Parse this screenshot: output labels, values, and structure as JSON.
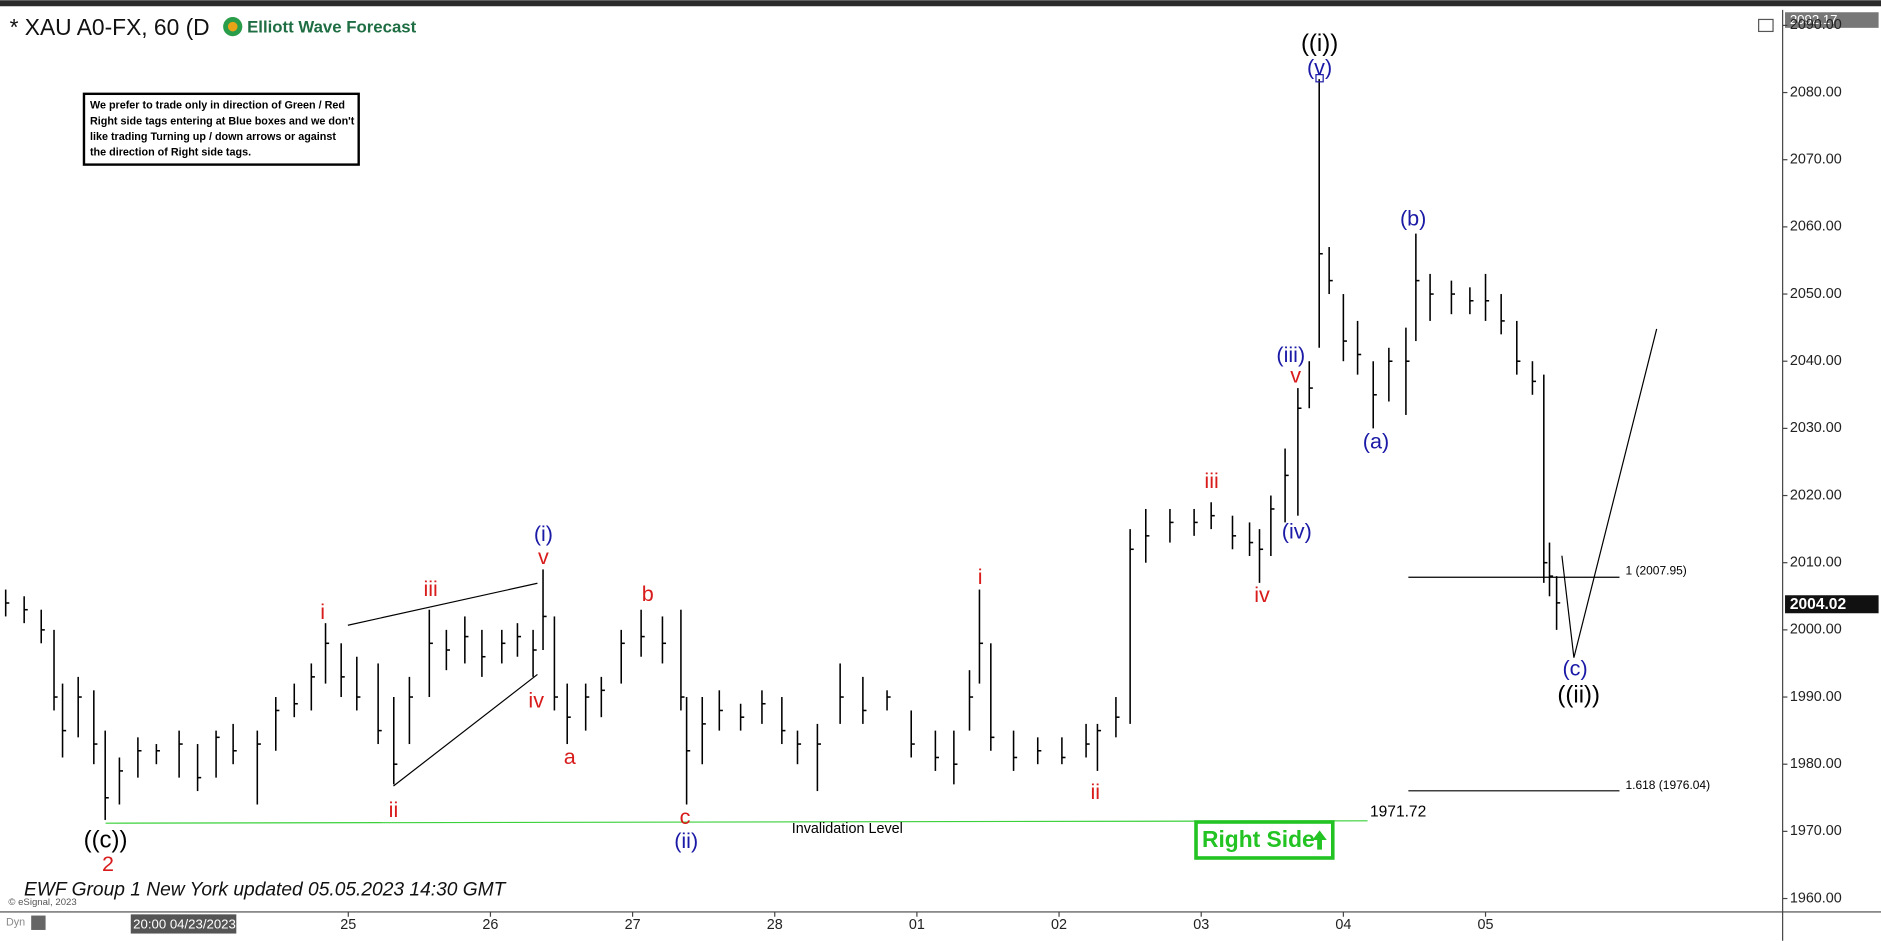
{
  "chart_data": {
    "type": "ohlc",
    "title": "* XAU A0-FX, 60 (D",
    "logo": "Elliott Wave Forecast",
    "note": [
      "We prefer to trade only in direction of Green / Red",
      "Right side tags entering at Blue boxes and we don't",
      "like trading Turning up / down arrows or against",
      "the direction of Right side tags."
    ],
    "footer": "EWF Group 1 New York updated 05.05.2023 14:30 GMT",
    "copyright": "© eSignal, 2023",
    "corner": "Dyn",
    "cursor_label": "20:00 04/23/2023",
    "last_price": "2004.02",
    "top_price": "2092.17",
    "invalidation": {
      "label": "Invalidation Level",
      "value": "1971.72"
    },
    "fib": [
      "1 (2007.95)",
      "1.618 (1976.04)"
    ],
    "right_side": "Right Side",
    "bar_color": "#000000",
    "xlim": [
      -1.45,
      11.09
    ],
    "ylim": [
      1958.0,
      2091.6
    ],
    "xticks": [
      {
        "value": 1,
        "label": "25"
      },
      {
        "value": 2,
        "label": "26"
      },
      {
        "value": 3,
        "label": "27"
      },
      {
        "value": 4,
        "label": "28"
      },
      {
        "value": 5,
        "label": "01"
      },
      {
        "value": 6,
        "label": "02"
      },
      {
        "value": 7,
        "label": "03"
      },
      {
        "value": 8,
        "label": "04"
      },
      {
        "value": 9,
        "label": "05"
      }
    ],
    "yticks": [
      {
        "value": 1960,
        "label": "1960.00"
      },
      {
        "value": 1970,
        "label": "1970.00"
      },
      {
        "value": 1980,
        "label": "1980.00"
      },
      {
        "value": 1990,
        "label": "1990.00"
      },
      {
        "value": 2000,
        "label": "2000.00"
      },
      {
        "value": 2010,
        "label": "2010.00"
      },
      {
        "value": 2020,
        "label": "2020.00"
      },
      {
        "value": 2030,
        "label": "2030.00"
      },
      {
        "value": 2040,
        "label": "2040.00"
      },
      {
        "value": 2050,
        "label": "2050.00"
      },
      {
        "value": 2060,
        "label": "2060.00"
      },
      {
        "value": 2070,
        "label": "2070.00"
      },
      {
        "value": 2080,
        "label": "2080.00"
      },
      {
        "value": 2090,
        "label": "2090.00"
      }
    ],
    "x": [
      -1.41,
      -1.28,
      -1.16,
      -1.07,
      -1.01,
      -0.9,
      -0.79,
      -0.71,
      -0.61,
      -0.48,
      -0.35,
      -0.19,
      -0.06,
      0.07,
      0.19,
      0.36,
      0.49,
      0.62,
      0.74,
      0.84,
      0.95,
      1.06,
      1.21,
      1.32,
      1.43,
      1.57,
      1.69,
      1.82,
      1.94,
      2.08,
      2.19,
      2.3,
      2.37,
      2.45,
      2.54,
      2.67,
      2.78,
      2.92,
      3.06,
      3.21,
      3.34,
      3.38,
      3.49,
      3.61,
      3.76,
      3.91,
      4.05,
      4.16,
      4.3,
      4.46,
      4.62,
      4.79,
      4.96,
      5.13,
      5.26,
      5.37,
      5.44,
      5.52,
      5.68,
      5.85,
      6.02,
      6.19,
      6.27,
      6.4,
      6.5,
      6.61,
      6.78,
      6.95,
      7.07,
      7.22,
      7.34,
      7.41,
      7.49,
      7.59,
      7.68,
      7.76,
      7.83,
      7.9,
      8.0,
      8.1,
      8.21,
      8.32,
      8.44,
      8.51,
      8.61,
      8.76,
      8.89,
      9.0,
      9.11,
      9.22,
      9.33,
      9.41,
      9.45,
      9.5
    ],
    "high": [
      2006,
      2005,
      2003,
      2000,
      1992,
      1993,
      1991,
      1985,
      1981,
      1984,
      1983,
      1985,
      1983,
      1985,
      1986,
      1985,
      1990,
      1992,
      1995,
      2001,
      1998,
      1996,
      1995,
      1990,
      1993,
      2003,
      2000,
      2002,
      2000,
      2000,
      2001,
      2000,
      2009,
      2002,
      1992,
      1992,
      1993,
      2000,
      2003,
      2002,
      2003,
      1990,
      1990,
      1991,
      1989,
      1991,
      1990,
      1985,
      1986,
      1995,
      1993,
      1991,
      1988,
      1985,
      1985,
      1994,
      2006,
      1998,
      1985,
      1984,
      1984,
      1986,
      1986,
      1990,
      2015,
      2018,
      2018,
      2018,
      2019,
      2017,
      2016,
      2015,
      2020,
      2027,
      2036,
      2040,
      2082,
      2057,
      2050,
      2046,
      2040,
      2042,
      2045,
      2059,
      2053,
      2052,
      2051,
      2053,
      2050,
      2046,
      2040,
      2038,
      2013,
      2008
    ],
    "low": [
      2002,
      2001,
      1998,
      1988,
      1981,
      1984,
      1980,
      1971.7,
      1974,
      1978,
      1980,
      1978,
      1976,
      1978,
      1980,
      1974,
      1982,
      1987,
      1988,
      1992,
      1990,
      1988,
      1983,
      1977,
      1983,
      1990,
      1994,
      1995,
      1993,
      1995,
      1996,
      1993,
      1997,
      1988,
      1983,
      1985,
      1987,
      1992,
      1996,
      1995,
      1988,
      1974,
      1980,
      1985,
      1985,
      1986,
      1983,
      1980,
      1976,
      1986,
      1986,
      1988,
      1981,
      1979,
      1977,
      1985,
      1992,
      1982,
      1979,
      1980,
      1980,
      1981,
      1979,
      1984,
      1986,
      2010,
      2013,
      2014,
      2015,
      2012,
      2011,
      2007,
      2011,
      2016,
      2017,
      2033,
      2042,
      2050,
      2040,
      2038,
      2030,
      2034,
      2032,
      2043,
      2046,
      2047,
      2047,
      2046,
      2044,
      2038,
      2035,
      2007,
      2005,
      2000
    ],
    "close": [
      2004,
      2003,
      2000,
      1990,
      1985,
      1990,
      1983,
      1975,
      1979,
      1982,
      1982,
      1983,
      1978,
      1984,
      1982,
      1983,
      1988,
      1989,
      1993,
      1998,
      1993,
      1990,
      1985,
      1980,
      1990,
      1998,
      1997,
      1999,
      1996,
      1998,
      1999,
      1997,
      2002,
      1990,
      1987,
      1990,
      1991,
      1998,
      1999,
      1998,
      1990,
      1982,
      1986,
      1988,
      1987,
      1989,
      1985,
      1983,
      1983,
      1990,
      1988,
      1990,
      1983,
      1981,
      1980,
      1990,
      1998,
      1984,
      1981,
      1982,
      1981,
      1983,
      1985,
      1987,
      2012,
      2014,
      2016,
      2016,
      2017,
      2014,
      2013,
      2012,
      2018,
      2023,
      2033,
      2036,
      2056,
      2052,
      2043,
      2041,
      2035,
      2040,
      2040,
      2052,
      2050,
      2050,
      2049,
      2049,
      2046,
      2040,
      2037,
      2010,
      2008,
      2004.02
    ],
    "waves": [
      {
        "label": "((i))",
        "color": "#000000"
      },
      {
        "label": "(v)",
        "color": "#1a1aa6"
      },
      {
        "label": "(iii)",
        "color": "#1a1aa6"
      },
      {
        "label": "v",
        "color": "#d81b1b"
      },
      {
        "label": "iii",
        "color": "#d81b1b"
      },
      {
        "label": "(iv)",
        "color": "#1a1aa6"
      },
      {
        "label": "iv",
        "color": "#d81b1b"
      },
      {
        "label": "i",
        "color": "#d81b1b"
      },
      {
        "label": "ii",
        "color": "#d81b1b"
      },
      {
        "label": "(b)",
        "color": "#1a1aa6"
      },
      {
        "label": "(a)",
        "color": "#1a1aa6"
      },
      {
        "label": "(c)",
        "color": "#1a1aa6"
      },
      {
        "label": "((ii))",
        "color": "#000000"
      },
      {
        "label": "(i)",
        "color": "#1a1aa6"
      },
      {
        "label": "v",
        "color": "#d81b1b"
      },
      {
        "label": "iii",
        "color": "#d81b1b"
      },
      {
        "label": "i",
        "color": "#d81b1b"
      },
      {
        "label": "ii",
        "color": "#d81b1b"
      },
      {
        "label": "iv",
        "color": "#d81b1b"
      },
      {
        "label": "a",
        "color": "#d81b1b"
      },
      {
        "label": "b",
        "color": "#d81b1b"
      },
      {
        "label": "c",
        "color": "#d81b1b"
      },
      {
        "label": "(ii)",
        "color": "#1a1aa6"
      },
      {
        "label": "((c))",
        "color": "#000000"
      },
      {
        "label": "2",
        "color": "#d81b1b"
      }
    ]
  }
}
